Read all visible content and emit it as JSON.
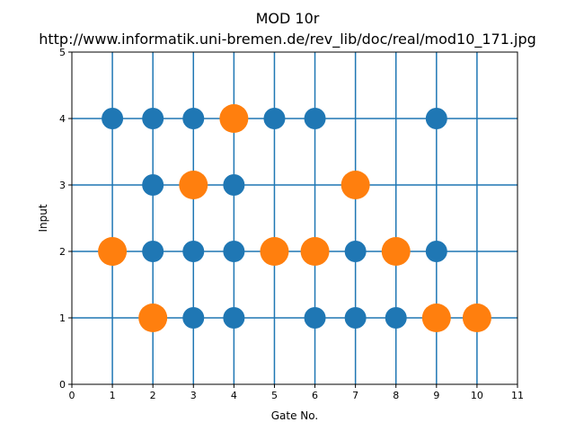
{
  "chart_data": {
    "type": "scatter",
    "title_line1": "MOD 10r",
    "title_line2": "http://www.informatik.uni-bremen.de/rev_lib/doc/real/mod10_171.jpg",
    "xlabel": "Gate No.",
    "ylabel": "Input",
    "xlim": [
      0,
      11
    ],
    "ylim": [
      0,
      5
    ],
    "xticks": [
      0,
      1,
      2,
      3,
      4,
      5,
      6,
      7,
      8,
      9,
      10,
      11
    ],
    "yticks": [
      0,
      1,
      2,
      3,
      4,
      5
    ],
    "grid_x": [
      1,
      2,
      3,
      4,
      5,
      6,
      7,
      8,
      9,
      10
    ],
    "grid_y": [
      1,
      2,
      3,
      4
    ],
    "grid": true,
    "colors": {
      "blue": "#1f77b4",
      "orange": "#ff7f0e"
    },
    "series": [
      {
        "color": "#1f77b4",
        "marker": "small-circle",
        "points": [
          [
            1,
            4
          ],
          [
            2,
            4
          ],
          [
            3,
            4
          ],
          [
            5,
            4
          ],
          [
            6,
            4
          ],
          [
            9,
            4
          ],
          [
            2,
            3
          ],
          [
            4,
            3
          ],
          [
            2,
            2
          ],
          [
            3,
            2
          ],
          [
            4,
            2
          ],
          [
            7,
            2
          ],
          [
            9,
            2
          ],
          [
            3,
            1
          ],
          [
            4,
            1
          ],
          [
            6,
            1
          ],
          [
            7,
            1
          ],
          [
            8,
            1
          ]
        ]
      },
      {
        "color": "#ff7f0e",
        "marker": "large-circle",
        "points": [
          [
            4,
            4
          ],
          [
            3,
            3
          ],
          [
            7,
            3
          ],
          [
            1,
            2
          ],
          [
            5,
            2
          ],
          [
            6,
            2
          ],
          [
            8,
            2
          ],
          [
            2,
            1
          ],
          [
            9,
            1
          ],
          [
            10,
            1
          ]
        ]
      }
    ]
  }
}
